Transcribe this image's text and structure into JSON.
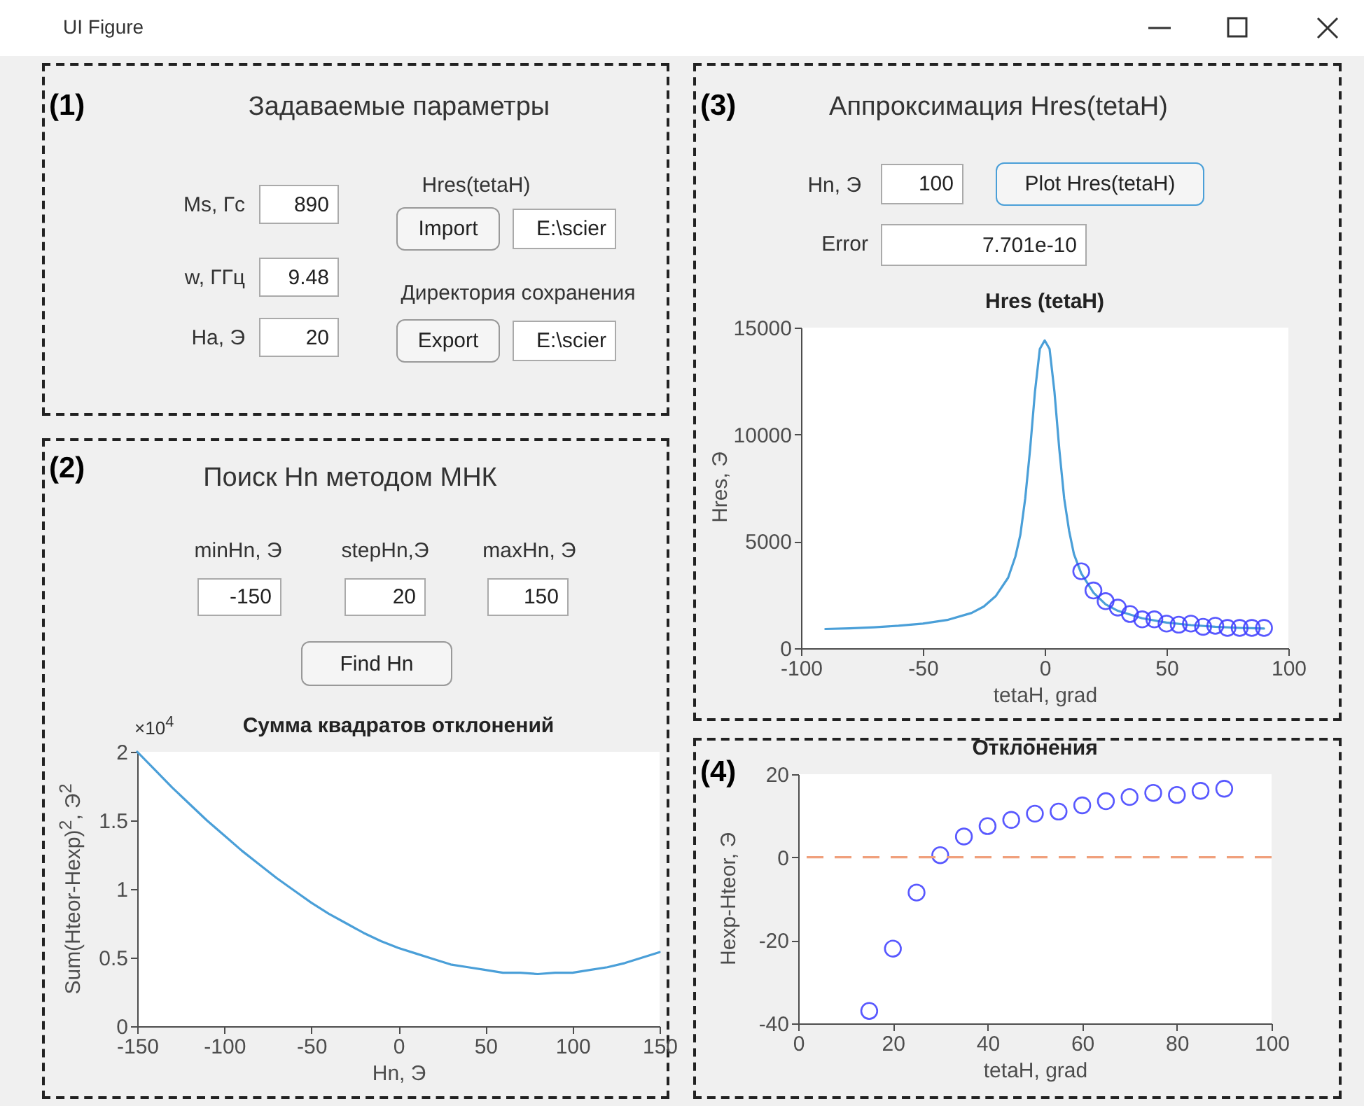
{
  "chart_data": [
    {
      "type": "other",
      "annotations": [
        "UI Figure",
        "(1)",
        "Задаваемые параметры",
        "Ms, Гс",
        "890",
        "w, ГГц",
        "9.48",
        "На, Э",
        "20",
        "Hres(tetaH)",
        "Import",
        "E:\\scier",
        "Директория сохранения",
        "Export",
        "E:\\scier"
      ]
    },
    {
      "type": "line",
      "title": "Hres (tetaH)",
      "xlabel": "tetaH, grad",
      "ylabel": "Hres, Э",
      "xlim": [
        -100,
        100
      ],
      "xticks": [
        -100,
        -50,
        0,
        50,
        100
      ],
      "ylim": [
        0,
        15000
      ],
      "yticks": [
        0,
        5000,
        10000,
        15000
      ],
      "annotations": [
        "(3)",
        "Аппроксимация Hres(tetaH)",
        "Hn, Э",
        "100",
        "Plot Hres(tetaH)",
        "Error",
        "7.701e-10"
      ],
      "series": [
        {
          "type": "line",
          "color": "#4a9fd8",
          "x": [
            -90,
            -80,
            -70,
            -60,
            -50,
            -40,
            -30,
            -25,
            -20,
            -15,
            -12,
            -10,
            -8,
            -6,
            -4,
            -2,
            0,
            2,
            4,
            6,
            8,
            10,
            12,
            15,
            20,
            25,
            30,
            40,
            50,
            60,
            70,
            80,
            90
          ],
          "values": [
            900,
            930,
            980,
            1050,
            1150,
            1320,
            1650,
            1950,
            2450,
            3300,
            4300,
            5300,
            7000,
            9300,
            12000,
            14000,
            14400,
            14000,
            12000,
            9300,
            7000,
            5500,
            4400,
            3500,
            2600,
            2050,
            1750,
            1400,
            1200,
            1080,
            1000,
            950,
            920
          ]
        },
        {
          "type": "scatter",
          "marker": "circle",
          "color": "#3c3cff",
          "x": [
            15,
            20,
            25,
            30,
            35,
            40,
            45,
            50,
            55,
            60,
            65,
            70,
            75,
            80,
            85,
            90
          ],
          "values": [
            3600,
            2700,
            2200,
            1900,
            1600,
            1350,
            1350,
            1150,
            1100,
            1150,
            1000,
            1050,
            950,
            950,
            950,
            950
          ]
        }
      ]
    },
    {
      "type": "line",
      "title": "Сумма квадратов отклонений",
      "xlabel": "Hn, Э",
      "ylabel": "Sum(Hteor-Hexp)$^{2}$, Э$^{2}$",
      "xlim": [
        -150,
        150
      ],
      "xticks": [
        -150,
        -100,
        -50,
        0,
        50,
        100,
        150
      ],
      "ylim": [
        0,
        2
      ],
      "yticks": [
        0,
        0.5,
        1,
        1.5,
        2
      ],
      "color": "#4a9fd8",
      "annotations": [
        "(2)",
        "Поиск Hn методом МНК",
        "minHn, Э",
        "-150",
        "stepHn,Э",
        "20",
        "maxHn, Э",
        "150",
        "Find Hn",
        "×10$^{4}$"
      ],
      "x": [
        -150,
        -140,
        -130,
        -120,
        -110,
        -100,
        -90,
        -80,
        -70,
        -60,
        -50,
        -40,
        -30,
        -20,
        -10,
        0,
        10,
        20,
        30,
        40,
        50,
        60,
        70,
        80,
        90,
        100,
        110,
        120,
        130,
        140,
        150
      ],
      "values": [
        2.0,
        1.87,
        1.74,
        1.62,
        1.5,
        1.39,
        1.28,
        1.18,
        1.08,
        0.99,
        0.9,
        0.82,
        0.75,
        0.68,
        0.62,
        0.57,
        0.53,
        0.49,
        0.45,
        0.43,
        0.41,
        0.39,
        0.39,
        0.38,
        0.39,
        0.39,
        0.41,
        0.43,
        0.46,
        0.5,
        0.54
      ]
    },
    {
      "type": "scatter",
      "marker": "circle",
      "title": "Отклонения",
      "xlabel": "tetaH, grad",
      "ylabel": "Hexp-Hteor, Э",
      "xlim": [
        0,
        100
      ],
      "xticks": [
        0,
        20,
        40,
        60,
        80,
        100
      ],
      "ylim": [
        -40,
        20
      ],
      "yticks": [
        -40,
        -20,
        0,
        20
      ],
      "color": "#3c3cff",
      "annotations": [
        "(4)"
      ],
      "ref_lines": [
        {
          "axis": "y",
          "value": 0,
          "color": "#f0a07c",
          "line_style": "dashed"
        }
      ],
      "x": [
        15,
        20,
        25,
        30,
        35,
        40,
        45,
        50,
        55,
        60,
        65,
        70,
        75,
        80,
        85,
        90
      ],
      "values": [
        -37,
        -22,
        -8.5,
        0.5,
        5,
        7.5,
        9,
        10.5,
        11,
        12.5,
        13.5,
        14.5,
        15.5,
        15,
        16,
        16.5
      ]
    }
  ]
}
